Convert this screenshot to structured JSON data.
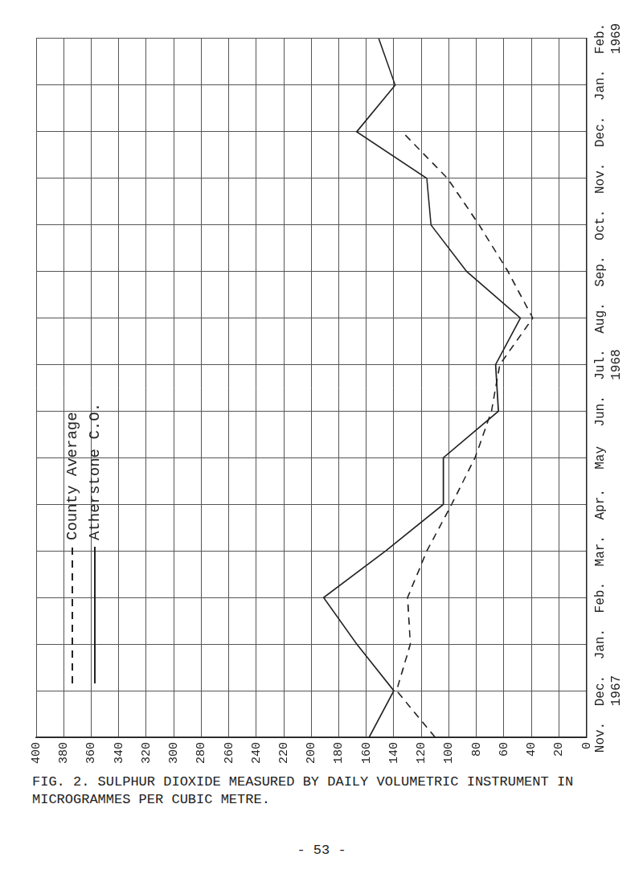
{
  "chart_data": {
    "type": "line",
    "title": "FIG. 2. SULPHUR DIOXIDE MEASURED BY DAILY VOLUMETRIC INSTRUMENT IN MICROGRAMMES PER CUBIC METRE.",
    "categories": [
      "Nov.",
      [
        "Dec.",
        "1967"
      ],
      "Jan.",
      "Feb.",
      "Mar.",
      "Apr.",
      "May",
      "Jun.",
      [
        "Jul.",
        "1968"
      ],
      "Aug.",
      "Sep.",
      "Oct.",
      "Nov.",
      "Dec.",
      "Jan.",
      [
        "Feb.",
        "1969"
      ]
    ],
    "series": [
      {
        "name": "County Average",
        "color": "#222222",
        "line_style": "dashed",
        "values": [
          110,
          138,
          128,
          130,
          116,
          98,
          81,
          69,
          63,
          39,
          57,
          78,
          101,
          134,
          null,
          null
        ]
      },
      {
        "name": "Atherstone C.O.",
        "color": "#222222",
        "line_style": "solid",
        "values": [
          158,
          140,
          167,
          191,
          146,
          104,
          104,
          64,
          66,
          48,
          87,
          113,
          116,
          167,
          139,
          151
        ]
      }
    ],
    "ylim": [
      0,
      400
    ],
    "yticks": [
      0,
      20,
      40,
      60,
      80,
      100,
      120,
      140,
      160,
      180,
      200,
      220,
      240,
      260,
      280,
      300,
      320,
      340,
      360,
      380,
      400
    ],
    "grid": true,
    "legend": "top-left"
  },
  "footer": "- 53 -"
}
